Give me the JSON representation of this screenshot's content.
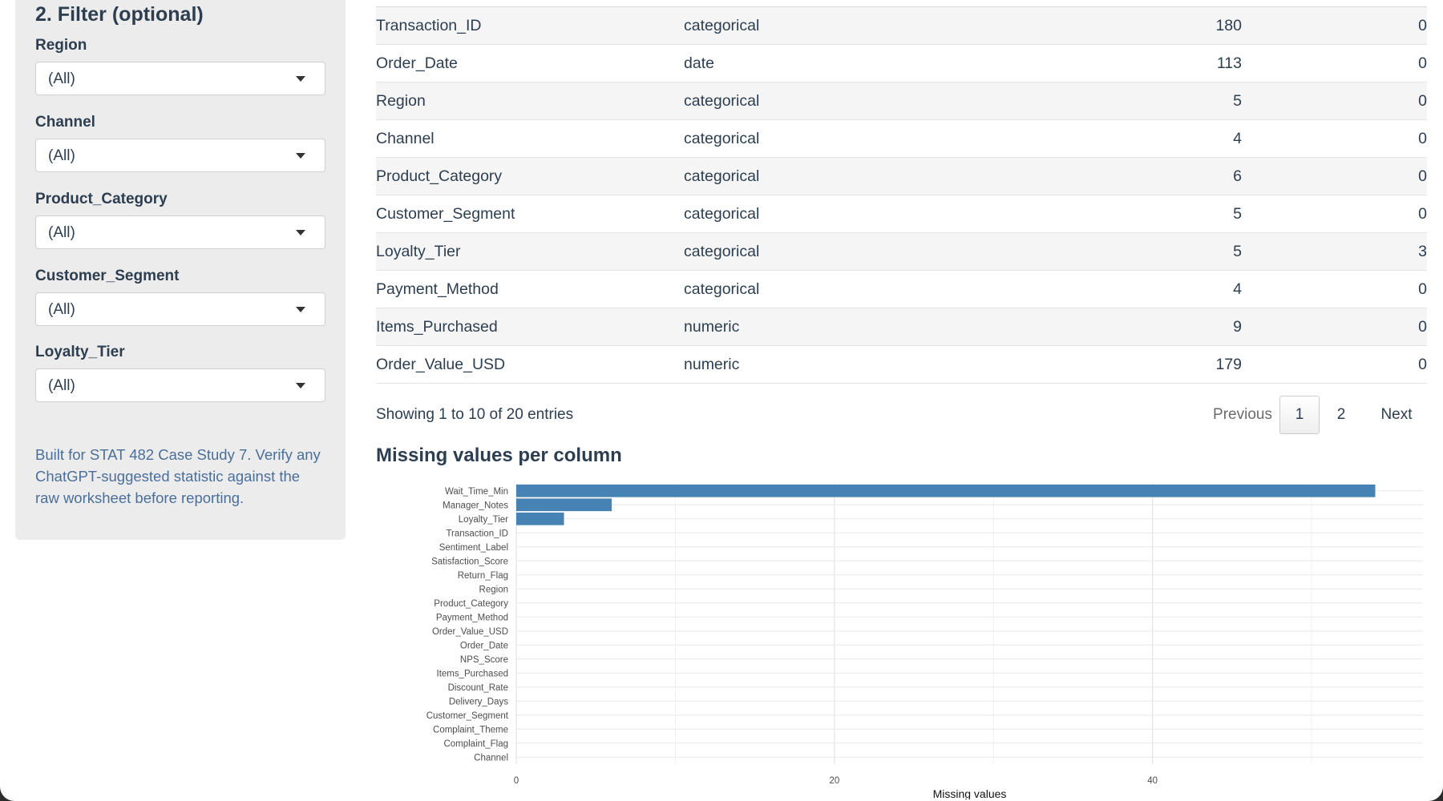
{
  "sidebar": {
    "heading": "2. Filter (optional)",
    "filters": [
      {
        "label": "Region",
        "value": "(All)"
      },
      {
        "label": "Channel",
        "value": "(All)"
      },
      {
        "label": "Product_Category",
        "value": "(All)"
      },
      {
        "label": "Customer_Segment",
        "value": "(All)"
      },
      {
        "label": "Loyalty_Tier",
        "value": "(All)"
      }
    ],
    "note": "Built for STAT 482 Case Study 7. Verify any ChatGPT-suggested statistic against the raw worksheet before reporting."
  },
  "table": {
    "rows": [
      {
        "column": "Transaction_ID",
        "type": "categorical",
        "unique": "180",
        "missing": "0"
      },
      {
        "column": "Order_Date",
        "type": "date",
        "unique": "113",
        "missing": "0"
      },
      {
        "column": "Region",
        "type": "categorical",
        "unique": "5",
        "missing": "0"
      },
      {
        "column": "Channel",
        "type": "categorical",
        "unique": "4",
        "missing": "0"
      },
      {
        "column": "Product_Category",
        "type": "categorical",
        "unique": "6",
        "missing": "0"
      },
      {
        "column": "Customer_Segment",
        "type": "categorical",
        "unique": "5",
        "missing": "0"
      },
      {
        "column": "Loyalty_Tier",
        "type": "categorical",
        "unique": "5",
        "missing": "3"
      },
      {
        "column": "Payment_Method",
        "type": "categorical",
        "unique": "4",
        "missing": "0"
      },
      {
        "column": "Items_Purchased",
        "type": "numeric",
        "unique": "9",
        "missing": "0"
      },
      {
        "column": "Order_Value_USD",
        "type": "numeric",
        "unique": "179",
        "missing": "0"
      }
    ],
    "info": "Showing 1 to 10 of 20 entries",
    "pagination": {
      "previous": "Previous",
      "pages": [
        "1",
        "2"
      ],
      "next": "Next"
    }
  },
  "chart_section": {
    "title": "Missing values per column"
  },
  "chart_data": {
    "type": "bar",
    "orientation": "horizontal",
    "categories": [
      "Wait_Time_Min",
      "Manager_Notes",
      "Loyalty_Tier",
      "Transaction_ID",
      "Sentiment_Label",
      "Satisfaction_Score",
      "Return_Flag",
      "Region",
      "Product_Category",
      "Payment_Method",
      "Order_Value_USD",
      "Order_Date",
      "NPS_Score",
      "Items_Purchased",
      "Discount_Rate",
      "Delivery_Days",
      "Customer_Segment",
      "Complaint_Theme",
      "Complaint_Flag",
      "Channel"
    ],
    "values": [
      54,
      6,
      3,
      0,
      0,
      0,
      0,
      0,
      0,
      0,
      0,
      0,
      0,
      0,
      0,
      0,
      0,
      0,
      0,
      0
    ],
    "xlabel": "Missing values",
    "ylabel": "",
    "xlim": [
      0,
      57
    ],
    "xticks": [
      0,
      20,
      40
    ],
    "grid": true,
    "bar_color": "#4682b4"
  }
}
